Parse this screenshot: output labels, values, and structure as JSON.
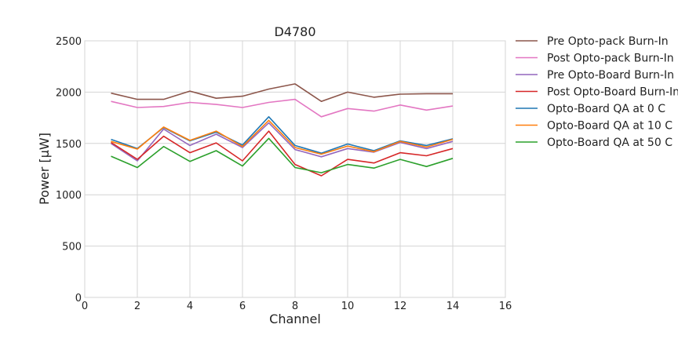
{
  "chart_data": {
    "type": "line",
    "title": "D4780",
    "xlabel": "Channel",
    "ylabel": "Power [µW]",
    "xlim": [
      0,
      16
    ],
    "ylim": [
      0,
      2500
    ],
    "xticks": [
      0,
      2,
      4,
      6,
      8,
      10,
      12,
      14,
      16
    ],
    "yticks": [
      0,
      500,
      1000,
      1500,
      2000,
      2500
    ],
    "grid": true,
    "legend_position": "outside-right",
    "x": [
      1,
      2,
      3,
      4,
      5,
      6,
      7,
      8,
      9,
      10,
      11,
      12,
      13,
      14
    ],
    "series": [
      {
        "name": "Pre Opto-pack Burn-In",
        "color": "#8c564b",
        "values": [
          1990,
          1930,
          1930,
          2010,
          1940,
          1960,
          2030,
          2080,
          1910,
          2000,
          1950,
          1980,
          1985,
          1985
        ]
      },
      {
        "name": "Post Opto-pack Burn-In",
        "color": "#e377c2",
        "values": [
          1910,
          1850,
          1860,
          1900,
          1880,
          1850,
          1900,
          1930,
          1760,
          1840,
          1815,
          1875,
          1825,
          1865
        ]
      },
      {
        "name": "Pre Opto-Board Burn-In",
        "color": "#9467bd",
        "values": [
          1500,
          1330,
          1640,
          1480,
          1590,
          1460,
          1700,
          1440,
          1370,
          1450,
          1415,
          1510,
          1450,
          1520
        ]
      },
      {
        "name": "Post Opto-Board Burn-In",
        "color": "#d62728",
        "values": [
          1510,
          1345,
          1570,
          1410,
          1505,
          1330,
          1620,
          1295,
          1185,
          1345,
          1310,
          1410,
          1380,
          1450
        ]
      },
      {
        "name": "Opto-Board QA at 0 C",
        "color": "#1f77b4",
        "values": [
          1540,
          1450,
          1655,
          1525,
          1610,
          1485,
          1760,
          1480,
          1405,
          1495,
          1430,
          1525,
          1480,
          1545
        ]
      },
      {
        "name": "Opto-Board QA at 10 C",
        "color": "#ff7f0e",
        "values": [
          1520,
          1445,
          1660,
          1530,
          1620,
          1470,
          1725,
          1460,
          1395,
          1475,
          1420,
          1520,
          1465,
          1540
        ]
      },
      {
        "name": "Opto-Board QA at 50 C",
        "color": "#2ca02c",
        "values": [
          1375,
          1265,
          1470,
          1325,
          1430,
          1280,
          1550,
          1265,
          1215,
          1295,
          1260,
          1345,
          1275,
          1355
        ]
      }
    ]
  }
}
